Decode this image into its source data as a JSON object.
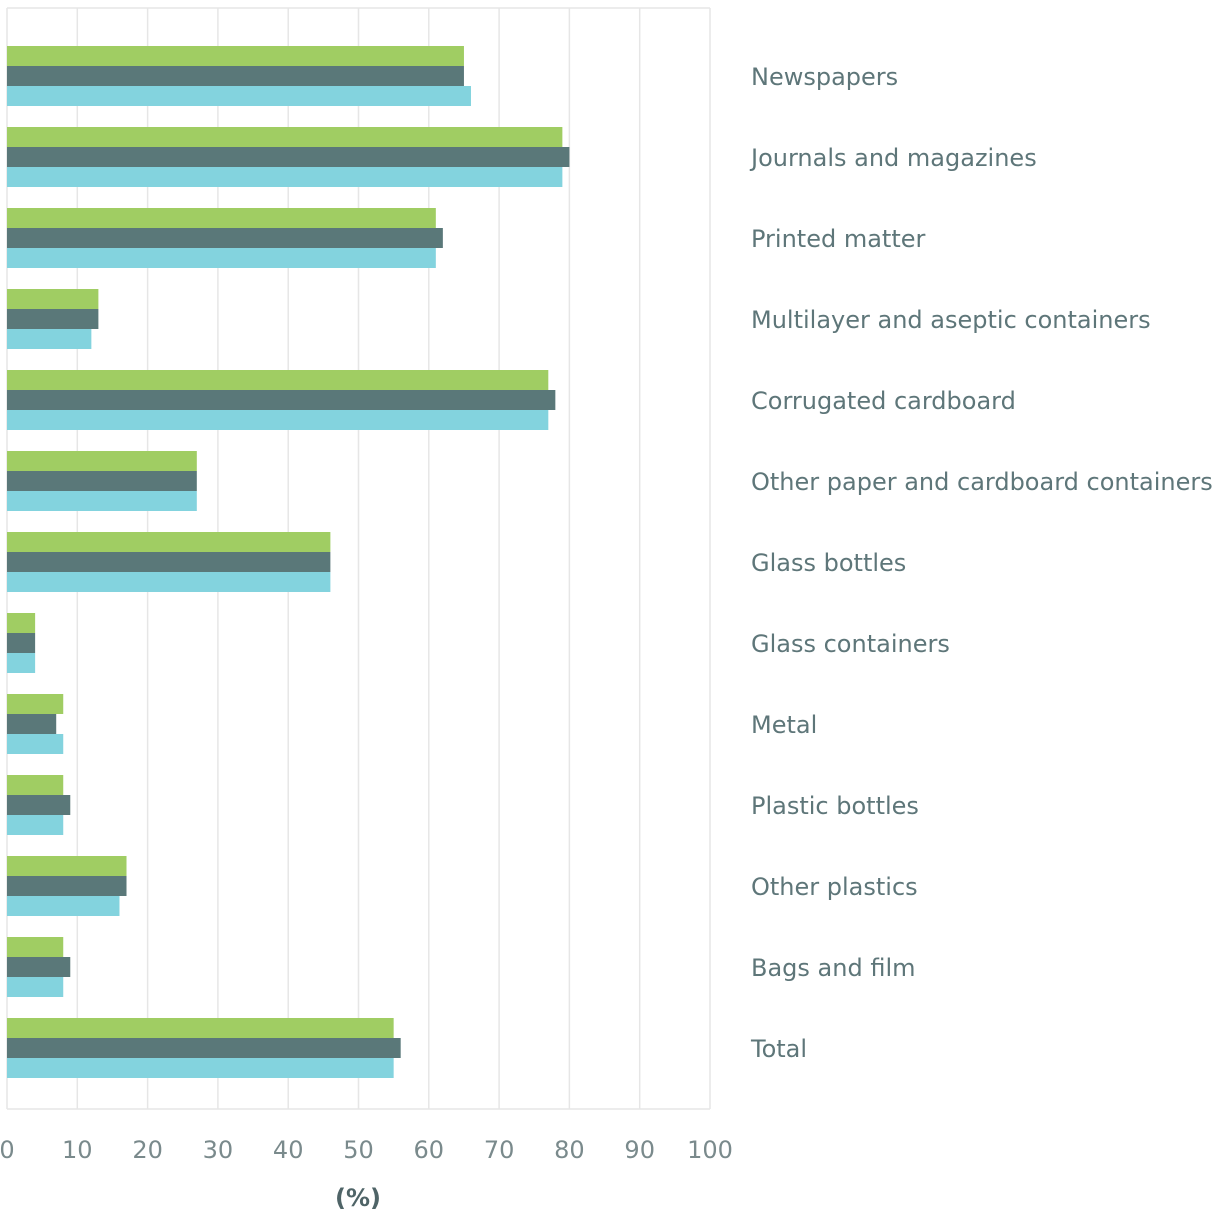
{
  "chart_data": {
    "type": "bar",
    "orientation": "horizontal",
    "categories": [
      "Newspapers",
      "Journals and magazines",
      "Printed matter",
      "Multilayer and aseptic containers",
      "Corrugated cardboard",
      "Other paper and cardboard containers",
      "Glass bottles",
      "Glass containers",
      "Metal",
      "Plastic bottles",
      "Other plastics",
      "Bags and film",
      "Total"
    ],
    "series": [
      {
        "color": "#a0cd63",
        "values": [
          65,
          79,
          61,
          13,
          77,
          27,
          46,
          4,
          8,
          8,
          17,
          8,
          55
        ]
      },
      {
        "color": "#5a7879",
        "values": [
          65,
          80,
          62,
          13,
          78,
          27,
          46,
          4,
          7,
          9,
          17,
          9,
          56
        ]
      },
      {
        "color": "#83d3de",
        "values": [
          66,
          79,
          61,
          12,
          77,
          27,
          46,
          4,
          8,
          8,
          16,
          8,
          55
        ]
      }
    ],
    "xlim": [
      0,
      100
    ],
    "xticks": [
      0,
      10,
      20,
      30,
      40,
      50,
      60,
      70,
      80,
      90,
      100
    ],
    "xlabel": "(%)",
    "ylabel": "",
    "title": "",
    "grid": "vertical",
    "legend": "none",
    "colors": {
      "grid": "#e6e6e6",
      "tick_text": "#7a8a8c",
      "label_text": "#5e7679"
    }
  }
}
